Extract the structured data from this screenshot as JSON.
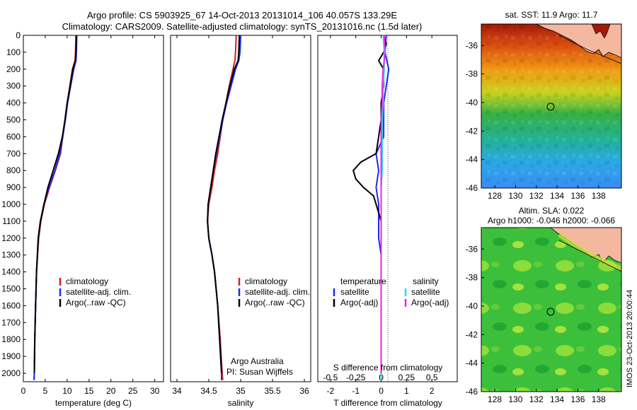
{
  "figure": {
    "title_line1": "Argo profile: CS 5903925_67 14-Oct-2013 20131014_106 40.057S 133.29E",
    "title_line2": "Climatology: CARS2009. Satellite-adjusted climatology: synTS_20131016.nc (1.5d later)",
    "watermark": "IMOS 23-Oct-2013 20:00:44"
  },
  "colors": {
    "climatology": "#d42020",
    "satellite": "#1a2cf0",
    "argo": "#000000",
    "satellite_salinity": "#22e0ee",
    "argo_salinity": "#ee20ee"
  },
  "chart_data": [
    {
      "type": "line",
      "panel": "temperature",
      "xlabel": "temperature (deg C)",
      "ylabel": "",
      "xlim": [
        0,
        32
      ],
      "ylim": [
        2050,
        0
      ],
      "xticks": [
        0,
        5,
        10,
        15,
        20,
        25,
        30
      ],
      "yticks": [
        0,
        100,
        200,
        300,
        400,
        500,
        600,
        700,
        800,
        900,
        1000,
        1100,
        1200,
        1300,
        1400,
        1500,
        1600,
        1700,
        1800,
        1900,
        2000
      ],
      "legend": [
        "climatology",
        "satellite-adj. clim.",
        "Argo(..raw -QC)"
      ],
      "legend_position": "lower-center",
      "series": [
        {
          "name": "climatology",
          "color_key": "climatology",
          "depth": [
            0,
            100,
            150,
            200,
            300,
            400,
            500,
            600,
            700,
            800,
            900,
            1000,
            1100,
            1200,
            1400,
            1600,
            1800,
            2000,
            2040
          ],
          "values": [
            12,
            11.9,
            11.8,
            11.2,
            10.6,
            10.0,
            9.5,
            9.0,
            8.5,
            7.3,
            6.0,
            4.8,
            4.0,
            3.5,
            3.0,
            2.8,
            2.6,
            2.5,
            2.4
          ]
        },
        {
          "name": "satellite-adj. clim.",
          "color_key": "satellite",
          "depth": [
            0,
            100,
            150,
            200,
            300,
            400,
            500,
            600,
            700,
            800,
            900,
            1000,
            1100,
            1200,
            1400,
            1600,
            1800,
            2000,
            2040
          ],
          "values": [
            12.2,
            12.1,
            12.0,
            11.5,
            10.8,
            10.1,
            9.6,
            9.0,
            8.3,
            7.2,
            5.8,
            4.7,
            3.9,
            3.4,
            3.0,
            2.8,
            2.6,
            2.5,
            2.45
          ]
        },
        {
          "name": "Argo(..raw -QC)",
          "color_key": "argo",
          "depth": [
            0,
            100,
            150,
            200,
            300,
            400,
            500,
            600,
            700,
            800,
            900,
            1000,
            1100,
            1200,
            1400,
            1600,
            1800,
            2000
          ],
          "values": [
            12.1,
            12.0,
            11.9,
            11.3,
            10.7,
            10.0,
            9.5,
            8.9,
            8.0,
            6.8,
            5.6,
            4.7,
            3.9,
            3.4,
            3.0,
            2.8,
            2.6,
            2.5
          ]
        }
      ]
    },
    {
      "type": "line",
      "panel": "salinity",
      "xlabel": "salinity",
      "xlim": [
        33.9,
        36.1
      ],
      "ylim": [
        2050,
        0
      ],
      "xticks": [
        34,
        34.5,
        35,
        35.5,
        36
      ],
      "xtick_labels": [
        "34",
        "34.5",
        "35",
        "35.5",
        "36"
      ],
      "legend": [
        "climatology",
        "satellite-adj. clim.",
        "Argo(..raw -QC)"
      ],
      "legend_position": "lower-center",
      "annotation": [
        "Argo Australia",
        "PI: Susan Wijffels"
      ],
      "series": [
        {
          "name": "climatology",
          "color_key": "climatology",
          "depth": [
            0,
            100,
            150,
            200,
            300,
            400,
            500,
            600,
            700,
            800,
            900,
            1000,
            1100,
            1200,
            1300,
            1400,
            1600,
            1800,
            2000,
            2040
          ],
          "values": [
            34.93,
            34.92,
            34.91,
            34.88,
            34.82,
            34.77,
            34.72,
            34.68,
            34.64,
            34.59,
            34.55,
            34.5,
            34.48,
            34.5,
            34.55,
            34.59,
            34.64,
            34.68,
            34.71,
            34.72
          ]
        },
        {
          "name": "satellite-adj. clim.",
          "color_key": "satellite",
          "depth": [
            0,
            100,
            150,
            200,
            300,
            400,
            500,
            600,
            700,
            800,
            900,
            1000,
            1100,
            1200,
            1300,
            1400,
            1600,
            1800,
            2000,
            2040
          ],
          "values": [
            35.0,
            34.99,
            34.97,
            34.92,
            34.85,
            34.78,
            34.72,
            34.67,
            34.62,
            34.57,
            34.53,
            34.49,
            34.48,
            34.5,
            34.55,
            34.59,
            34.64,
            34.67,
            34.7,
            34.7
          ]
        },
        {
          "name": "Argo(..raw -QC)",
          "color_key": "argo",
          "depth": [
            0,
            100,
            150,
            200,
            300,
            400,
            500,
            600,
            700,
            800,
            900,
            1000,
            1100,
            1200,
            1300,
            1400,
            1600,
            1800,
            2000
          ],
          "values": [
            34.98,
            34.97,
            34.96,
            34.9,
            34.83,
            34.77,
            34.71,
            34.66,
            34.61,
            34.57,
            34.53,
            34.49,
            34.48,
            34.5,
            34.55,
            34.59,
            34.64,
            34.67,
            34.7
          ]
        }
      ]
    },
    {
      "type": "line",
      "panel": "differences",
      "xlabel": "T difference from climatology",
      "xlabel_top": "S difference from climatology",
      "xlim": [
        -2.5,
        3.0
      ],
      "ylim": [
        2050,
        0
      ],
      "xticks": [
        -2,
        -1,
        0,
        1,
        2
      ],
      "top_ticks": [
        -0.5,
        -0.25,
        0,
        0.25,
        0.5
      ],
      "top_tick_labels": [
        "-0.5",
        "-0.25",
        "0",
        "0.25",
        "0.5"
      ],
      "legend_temperature": [
        "temperature",
        "satellite",
        "Argo(-adj)"
      ],
      "legend_salinity": [
        "salinity",
        "satellite",
        "Argo(-adj)"
      ],
      "legend_position": "lower-center",
      "series": [
        {
          "name": "temperature satellite",
          "color_key": "satellite",
          "depth": [
            0,
            100,
            200,
            300,
            400,
            500,
            600,
            700,
            800,
            900,
            1000,
            1100,
            1200,
            1300,
            1400,
            1600,
            1800,
            2000,
            2040
          ],
          "values": [
            0.2,
            0.15,
            0.3,
            0.2,
            0.1,
            0.1,
            0.1,
            -0.2,
            -0.1,
            -0.2,
            -0.1,
            -0.1,
            -0.1,
            0,
            0,
            0,
            0,
            0,
            0
          ]
        },
        {
          "name": "temperature Argo(-adj)",
          "color_key": "argo",
          "depth": [
            0,
            50,
            100,
            150,
            200,
            300,
            400,
            500,
            600,
            700,
            750,
            800,
            850,
            900,
            950,
            1000,
            1050,
            1100,
            1150,
            1200,
            1300,
            1400,
            1600,
            1800,
            1900,
            2000
          ],
          "values": [
            0.1,
            0.2,
            0.1,
            -0.1,
            0.1,
            0.1,
            0,
            0,
            -0.1,
            -0.2,
            -0.8,
            -1.1,
            -1.0,
            -0.7,
            -0.3,
            -0.2,
            -0.1,
            0,
            0,
            0,
            0,
            0,
            0,
            0,
            0,
            0
          ]
        },
        {
          "name": "salinity satellite",
          "color_key": "satellite_salinity",
          "depth": [
            0,
            100,
            200,
            300,
            400,
            500,
            600,
            700,
            800,
            900,
            1000,
            1100,
            1200,
            1400,
            1600,
            1800,
            2000,
            2040
          ],
          "values": [
            0.02,
            0.03,
            0.03,
            0.02,
            0.02,
            0.01,
            0.01,
            0.01,
            0.01,
            0.0,
            0.0,
            0.0,
            0.0,
            0.0,
            0.0,
            0.0,
            0.0,
            0.0
          ]
        },
        {
          "name": "salinity Argo(-adj)",
          "color_key": "argo_salinity",
          "depth": [
            0,
            100,
            200,
            300,
            400,
            500,
            600,
            700,
            800,
            900,
            1000,
            1100,
            1200,
            1400,
            1600,
            1800,
            2000
          ],
          "values": [
            0.03,
            0.04,
            0.02,
            0.01,
            0.01,
            0.0,
            0.0,
            0.0,
            0.0,
            0.0,
            0.0,
            0.0,
            0.0,
            0.0,
            0.0,
            0.0,
            0.0
          ]
        }
      ]
    },
    {
      "type": "heatmap",
      "panel": "sst-map",
      "title": "sat. SST: 11.9 Argo: 11.7",
      "xlim": [
        126.7,
        140.2
      ],
      "ylim": [
        -46,
        -34.5
      ],
      "xticks": [
        128,
        130,
        132,
        134,
        136,
        138
      ],
      "yticks": [
        -36,
        -38,
        -40,
        -42,
        -44,
        -46
      ],
      "marker": {
        "lon": 133.29,
        "lat": -40.057
      }
    },
    {
      "type": "heatmap",
      "panel": "sla-map",
      "title_line1": "Altim. SLA: 0.022",
      "title_line2": "Argo h1000: -0.046 h2000: -0.066",
      "xlim": [
        126.7,
        140.2
      ],
      "ylim": [
        -46,
        -34.5
      ],
      "xticks": [
        128,
        130,
        132,
        134,
        136,
        138
      ],
      "yticks": [
        -36,
        -38,
        -40,
        -42,
        -44,
        -46
      ],
      "marker": {
        "lon": 133.29,
        "lat": -40.057
      }
    }
  ]
}
